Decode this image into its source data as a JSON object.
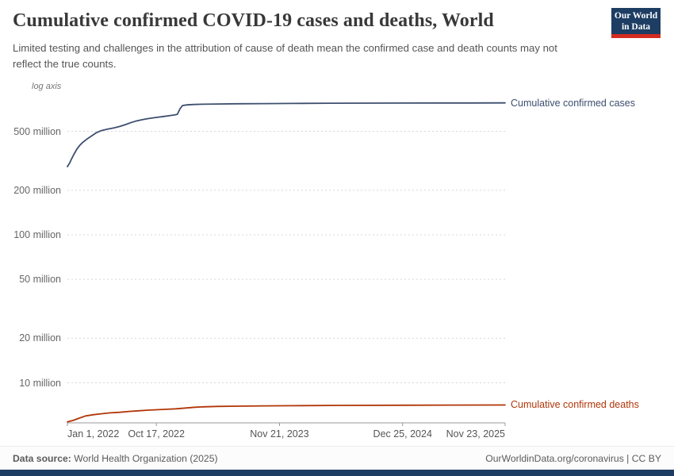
{
  "brand": {
    "navy": "#1d3d63",
    "red": "#d42b21"
  },
  "header": {
    "title": "Cumulative confirmed COVID-19 cases and deaths, World",
    "subtitle": "Limited testing and challenges in the attribution of cause of death mean the confirmed case and death counts may not reflect the true counts.",
    "logo": {
      "line1": "Our World",
      "line2": "in Data"
    }
  },
  "chart_data": {
    "type": "line",
    "title": "Cumulative confirmed COVID-19 cases and deaths, World",
    "x_type": "date",
    "y_scale": "log",
    "y_axis_note": "log axis",
    "unit": "million",
    "grid": true,
    "legend_position": "line-end-labels",
    "x_range": [
      "2022-01-01",
      "2025-11-23"
    ],
    "y_ticks": [
      {
        "value": 500,
        "label": "500 million"
      },
      {
        "value": 200,
        "label": "200 million"
      },
      {
        "value": 100,
        "label": "100 million"
      },
      {
        "value": 50,
        "label": "50 million"
      },
      {
        "value": 20,
        "label": "20 million"
      },
      {
        "value": 10,
        "label": "10 million"
      }
    ],
    "x_ticks": [
      {
        "date": "2022-01-01",
        "label": "Jan 1, 2022"
      },
      {
        "date": "2022-10-17",
        "label": "Oct 17, 2022"
      },
      {
        "date": "2023-11-21",
        "label": "Nov 21, 2023"
      },
      {
        "date": "2024-12-25",
        "label": "Dec 25, 2024"
      },
      {
        "date": "2025-11-23",
        "label": "Nov 23, 2025"
      }
    ],
    "series": [
      {
        "name": "Cumulative confirmed cases",
        "color": "#3d4e6e",
        "points": [
          [
            "2022-01-01",
            289
          ],
          [
            "2022-01-08",
            305
          ],
          [
            "2022-01-15",
            327
          ],
          [
            "2022-01-22",
            350
          ],
          [
            "2022-02-01",
            380
          ],
          [
            "2022-02-10",
            402
          ],
          [
            "2022-02-20",
            422
          ],
          [
            "2022-03-05",
            443
          ],
          [
            "2022-03-20",
            465
          ],
          [
            "2022-04-05",
            490
          ],
          [
            "2022-04-20",
            505
          ],
          [
            "2022-05-10",
            517
          ],
          [
            "2022-06-01",
            528
          ],
          [
            "2022-06-20",
            540
          ],
          [
            "2022-07-10",
            557
          ],
          [
            "2022-07-25",
            572
          ],
          [
            "2022-08-10",
            586
          ],
          [
            "2022-09-01",
            600
          ],
          [
            "2022-09-20",
            610
          ],
          [
            "2022-10-17",
            622
          ],
          [
            "2022-11-10",
            631
          ],
          [
            "2022-12-01",
            640
          ],
          [
            "2022-12-15",
            646
          ],
          [
            "2022-12-24",
            652
          ],
          [
            "2023-01-02",
            712
          ],
          [
            "2023-01-10",
            748
          ],
          [
            "2023-01-25",
            756
          ],
          [
            "2023-02-15",
            760
          ],
          [
            "2023-03-15",
            763
          ],
          [
            "2023-05-01",
            766
          ],
          [
            "2023-07-01",
            769
          ],
          [
            "2023-10-01",
            771
          ],
          [
            "2024-01-01",
            773
          ],
          [
            "2024-05-01",
            775
          ],
          [
            "2024-09-01",
            776
          ],
          [
            "2024-12-25",
            777
          ],
          [
            "2025-04-01",
            778
          ],
          [
            "2025-08-01",
            778.5
          ],
          [
            "2025-11-23",
            779
          ]
        ]
      },
      {
        "name": "Cumulative confirmed deaths",
        "color": "#b13507",
        "points": [
          [
            "2022-01-01",
            5.45
          ],
          [
            "2022-01-20",
            5.57
          ],
          [
            "2022-02-10",
            5.78
          ],
          [
            "2022-03-01",
            5.97
          ],
          [
            "2022-03-25",
            6.08
          ],
          [
            "2022-04-20",
            6.17
          ],
          [
            "2022-05-20",
            6.26
          ],
          [
            "2022-06-20",
            6.32
          ],
          [
            "2022-07-20",
            6.4
          ],
          [
            "2022-08-20",
            6.47
          ],
          [
            "2022-09-20",
            6.53
          ],
          [
            "2022-10-17",
            6.57
          ],
          [
            "2022-11-20",
            6.62
          ],
          [
            "2022-12-20",
            6.67
          ],
          [
            "2023-01-20",
            6.75
          ],
          [
            "2023-02-20",
            6.84
          ],
          [
            "2023-03-20",
            6.88
          ],
          [
            "2023-05-01",
            6.92
          ],
          [
            "2023-07-01",
            6.95
          ],
          [
            "2023-10-01",
            6.98
          ],
          [
            "2024-01-01",
            7.0
          ],
          [
            "2024-06-01",
            7.03
          ],
          [
            "2024-12-25",
            7.05
          ],
          [
            "2025-06-01",
            7.07
          ],
          [
            "2025-11-23",
            7.08
          ]
        ]
      }
    ]
  },
  "footer": {
    "source_label": "Data source:",
    "source": "World Health Organization (2025)",
    "credit": "OurWorldinData.org/coronavirus | CC BY"
  }
}
